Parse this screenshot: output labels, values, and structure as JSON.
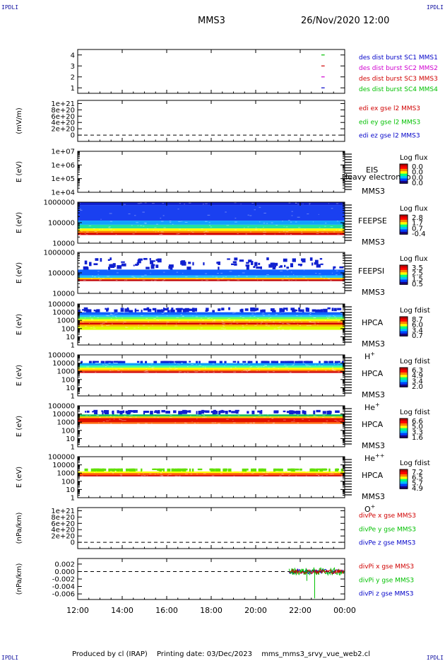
{
  "corners": {
    "tl": "IPDLI",
    "tr": "IPDLI",
    "bl": "IPDLI",
    "br": "IPDLI"
  },
  "header": {
    "title": "MMS3",
    "datetime": "26/Nov/2020 12:00"
  },
  "footer": {
    "produced": "Produced by cl (IRAP)",
    "printed": "Printing date: 03/Dec/2023",
    "file": "mms_mms3_srvy_vue_web2.cl"
  },
  "colors": {
    "blue": "#0000c8",
    "magenta": "#d000d0",
    "red": "#d00000",
    "green": "#00c000",
    "colorbar": [
      "#1a0080",
      "#0040ff",
      "#00c0ff",
      "#00ff80",
      "#ffff00",
      "#ff8000",
      "#ff0000",
      "#c00000"
    ]
  },
  "chart_data": [
    {
      "type": "line",
      "id": "burst",
      "ylim": [
        0.5,
        4.5
      ],
      "yticks": [
        "1",
        "2",
        "3",
        "4"
      ],
      "ylabel": "",
      "legend": [
        {
          "text": "des dist burst SC1 MMS1",
          "color": "#0000c8"
        },
        {
          "text": "des dist burst SC2 MMS2",
          "color": "#d000d0"
        },
        {
          "text": "des dist burst SC3 MMS3",
          "color": "#d00000"
        },
        {
          "text": "des dist burst SC4 MMS4",
          "color": "#00c000"
        }
      ],
      "series": [
        {
          "level": 1,
          "x": [
            22.95,
            23.1
          ],
          "color": "#0000c8"
        },
        {
          "level": 2,
          "x": [
            22.95,
            23.1
          ],
          "color": "#d000d0"
        },
        {
          "level": 3,
          "x": [
            22.95,
            23.1
          ],
          "color": "#d00000"
        },
        {
          "level": 4,
          "x": [
            22.95,
            23.1
          ],
          "color": "#00c000"
        }
      ]
    },
    {
      "type": "line",
      "id": "edi",
      "ylim": [
        -2e+20,
        1.1e+21
      ],
      "yticks": [
        "0",
        "2e+20",
        "4e+20",
        "6e+20",
        "8e+20",
        "1e+21"
      ],
      "ytickvals": [
        0,
        2e+20,
        4e+20,
        6e+20,
        8e+20,
        1e+21
      ],
      "ylabel": "(mV/m)",
      "zero_line": true,
      "legend": [
        {
          "text": "edi ex gse l2 MMS3",
          "color": "#d00000"
        },
        {
          "text": "edi ey gse l2 MMS3",
          "color": "#00c000"
        },
        {
          "text": "edi ez gse l2 MMS3",
          "color": "#0000c8"
        }
      ]
    },
    {
      "type": "heatmap",
      "id": "eis",
      "log": true,
      "yticks": [
        "1e+04",
        "1e+05",
        "1e+06",
        "1e+07"
      ],
      "ylabel": "E (eV)",
      "instrument": "EIS",
      "spacecraft": "MMS3",
      "overlay": "Heavy electron to",
      "colorbar": {
        "title": "Log flux",
        "ticks": [
          "0.0",
          "0.0",
          "0.0",
          "0.0"
        ]
      },
      "bands": []
    },
    {
      "type": "heatmap",
      "id": "feepse",
      "log": true,
      "yticks": [
        "10000",
        "100000",
        "1000000"
      ],
      "ylabel": "E (eV)",
      "instrument": "FEEPSE",
      "spacecraft": "MMS3",
      "colorbar": {
        "title": "Log flux",
        "ticks": [
          "2.8",
          "1.7",
          "0.7",
          "-0.4"
        ]
      },
      "bands": [
        {
          "from": 0.93,
          "to": 1.0,
          "color": "#1020d0"
        },
        {
          "from": 0.55,
          "to": 0.93,
          "color": "#1a40f0"
        },
        {
          "from": 0.45,
          "to": 0.55,
          "color": "#10a0ff"
        },
        {
          "from": 0.36,
          "to": 0.45,
          "color": "#20e0a0"
        },
        {
          "from": 0.3,
          "to": 0.36,
          "color": "#ffff00"
        },
        {
          "from": 0.25,
          "to": 0.3,
          "color": "#ff8000"
        },
        {
          "from": 0.2,
          "to": 0.25,
          "color": "#d00000"
        }
      ]
    },
    {
      "type": "heatmap",
      "id": "feepsi",
      "log": true,
      "yticks": [
        "10000",
        "100000",
        "1000000"
      ],
      "ylabel": "E (eV)",
      "instrument": "FEEPSI",
      "spacecraft": "MMS3",
      "colorbar": {
        "title": "Log flux",
        "ticks": [
          "3.5",
          "2.5",
          "1.5",
          "0.5"
        ]
      },
      "bands": [
        {
          "from": 0.58,
          "to": 0.88,
          "color": "#1020d0",
          "sparse": true
        },
        {
          "from": 0.44,
          "to": 0.58,
          "color": "#1060ff"
        },
        {
          "from": 0.38,
          "to": 0.44,
          "color": "#20c0ff"
        },
        {
          "from": 0.34,
          "to": 0.38,
          "color": "#ffd000"
        },
        {
          "from": 0.3,
          "to": 0.34,
          "color": "#c00000"
        }
      ]
    },
    {
      "type": "heatmap",
      "id": "hpca-h",
      "log": true,
      "yticks": [
        "1",
        "10",
        "100",
        "1000",
        "10000",
        "100000"
      ],
      "ylabel": "E (eV)",
      "instrument": "HPCA",
      "spacecraft": "MMS3",
      "species": "H",
      "species_sup": "+",
      "colorbar": {
        "title": "Log fdist",
        "ticks": [
          "8.7",
          "6.0",
          "3.4",
          "0.7"
        ]
      },
      "bands": [
        {
          "from": 0.8,
          "to": 0.92,
          "color": "#1020d0",
          "sparse": true
        },
        {
          "from": 0.73,
          "to": 0.8,
          "color": "#1060ff"
        },
        {
          "from": 0.68,
          "to": 0.73,
          "color": "#20c0ff"
        },
        {
          "from": 0.63,
          "to": 0.68,
          "color": "#60ff60"
        },
        {
          "from": 0.58,
          "to": 0.63,
          "color": "#ffff00"
        },
        {
          "from": 0.54,
          "to": 0.58,
          "color": "#ff8000"
        },
        {
          "from": 0.5,
          "to": 0.54,
          "color": "#d00000"
        },
        {
          "from": 0.45,
          "to": 0.5,
          "color": "#ffb000"
        },
        {
          "from": 0.37,
          "to": 0.45,
          "color": "#e0ff00"
        }
      ]
    },
    {
      "type": "heatmap",
      "id": "hpca-he",
      "log": true,
      "yticks": [
        "1",
        "10",
        "100",
        "1000",
        "10000",
        "100000"
      ],
      "ylabel": "E (eV)",
      "instrument": "HPCA",
      "spacecraft": "MMS3",
      "species": "He",
      "species_sup": "+",
      "colorbar": {
        "title": "Log fdist",
        "ticks": [
          "6.3",
          "4.9",
          "3.4",
          "2.0"
        ]
      },
      "bands": [
        {
          "from": 0.8,
          "to": 0.85,
          "color": "#1020d0",
          "sparse": true
        },
        {
          "from": 0.74,
          "to": 0.8,
          "color": "#10a0ff"
        },
        {
          "from": 0.69,
          "to": 0.74,
          "color": "#40ffa0"
        },
        {
          "from": 0.64,
          "to": 0.69,
          "color": "#ffff00"
        },
        {
          "from": 0.6,
          "to": 0.64,
          "color": "#ff8000"
        },
        {
          "from": 0.56,
          "to": 0.6,
          "color": "#d00000"
        }
      ]
    },
    {
      "type": "heatmap",
      "id": "hpca-he2",
      "log": true,
      "yticks": [
        "1",
        "10",
        "100",
        "1000",
        "10000",
        "100000"
      ],
      "ylabel": "E (eV)",
      "instrument": "HPCA",
      "spacecraft": "MMS3",
      "species": "He",
      "species_sup": "++",
      "colorbar": {
        "title": "Log fdist",
        "ticks": [
          "6.6",
          "5.0",
          "3.3",
          "1.6"
        ]
      },
      "bands": [
        {
          "from": 0.82,
          "to": 0.9,
          "color": "#1020d0",
          "sparse": true
        },
        {
          "from": 0.74,
          "to": 0.79,
          "color": "#20c060"
        },
        {
          "from": 0.7,
          "to": 0.74,
          "color": "#ffd000"
        },
        {
          "from": 0.6,
          "to": 0.7,
          "color": "#e01000"
        },
        {
          "from": 0.56,
          "to": 0.6,
          "color": "#ff6000"
        }
      ]
    },
    {
      "type": "heatmap",
      "id": "hpca-o",
      "log": true,
      "yticks": [
        "1",
        "10",
        "100",
        "1000",
        "10000",
        "100000"
      ],
      "ylabel": "E (eV)",
      "instrument": "HPCA",
      "spacecraft": "MMS3",
      "species": "O",
      "species_sup": "+",
      "colorbar": {
        "title": "Log fdist",
        "ticks": [
          "7.2",
          "6.5",
          "5.7",
          "4.9"
        ]
      },
      "bands": [
        {
          "from": 0.66,
          "to": 0.71,
          "color": "#60e000",
          "sparse": true
        },
        {
          "from": 0.6,
          "to": 0.64,
          "color": "#ffff00"
        },
        {
          "from": 0.55,
          "to": 0.6,
          "color": "#ff6000"
        },
        {
          "from": 0.52,
          "to": 0.55,
          "color": "#d00000"
        }
      ]
    },
    {
      "type": "line",
      "id": "divpe",
      "ylim": [
        -2e+20,
        1.1e+21
      ],
      "yticks": [
        "0",
        "2e+20",
        "4e+20",
        "6e+20",
        "8e+20",
        "1e+21"
      ],
      "ytickvals": [
        0,
        2e+20,
        4e+20,
        6e+20,
        8e+20,
        1e+21
      ],
      "ylabel": "(nPa/km)",
      "zero_line": true,
      "legend": [
        {
          "text": "divPe x gse MMS3",
          "color": "#d00000"
        },
        {
          "text": "divPe y gse MMS3",
          "color": "#00c000"
        },
        {
          "text": "divPe z gse MMS3",
          "color": "#0000c8"
        }
      ]
    },
    {
      "type": "line",
      "id": "divpi",
      "ylim": [
        -0.0075,
        0.0035
      ],
      "yticks": [
        "0.002",
        "0.000",
        "-0.002",
        "-0.004",
        "-0.006"
      ],
      "ytickvals": [
        0.002,
        0.0,
        -0.002,
        -0.004,
        -0.006
      ],
      "ylabel": "(nPa/km)",
      "zero_line": true,
      "legend": [
        {
          "text": "divPi x gse MMS3",
          "color": "#d00000"
        },
        {
          "text": "divPi y gse MMS3",
          "color": "#00c000"
        },
        {
          "text": "divPi z gse MMS3",
          "color": "#0000c8"
        }
      ],
      "data_range_x": [
        21.5,
        24.0
      ]
    }
  ],
  "xaxis": {
    "range": [
      12,
      24
    ],
    "ticks": [
      12,
      14,
      16,
      18,
      20,
      22,
      24
    ],
    "labels": [
      "12:00",
      "14:00",
      "16:00",
      "18:00",
      "20:00",
      "22:00",
      "00:00"
    ]
  }
}
